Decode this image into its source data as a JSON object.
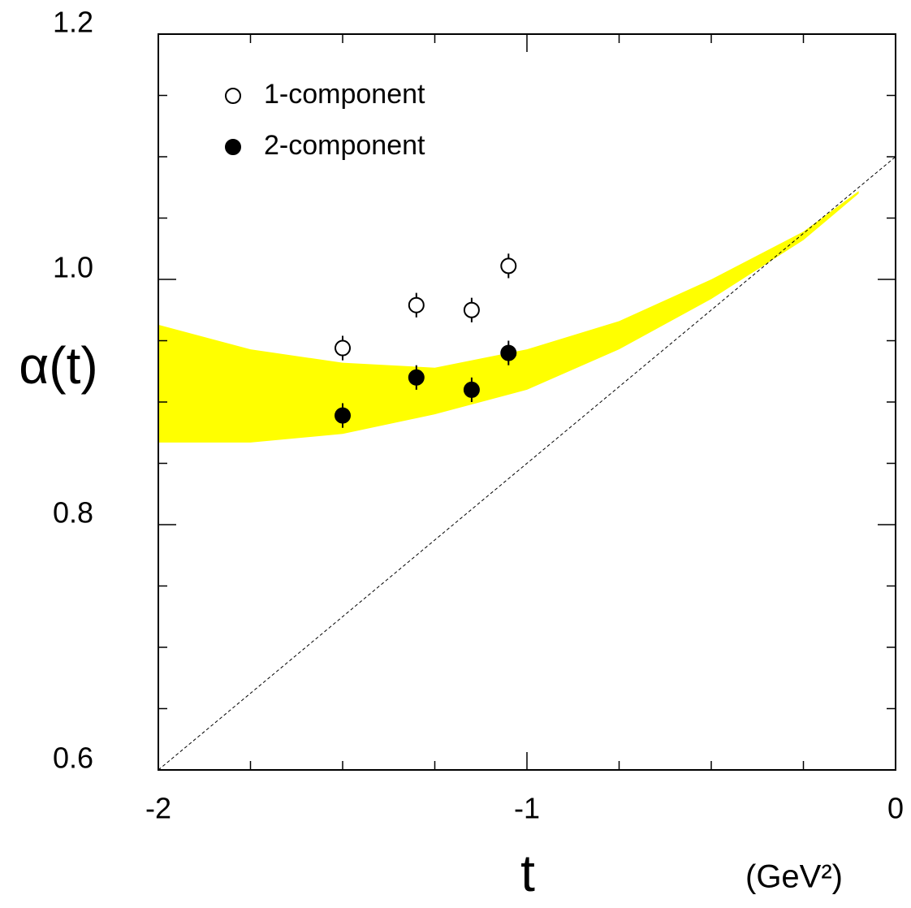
{
  "chart_data": {
    "type": "scatter",
    "y_label": "α(t)",
    "x_label": "t",
    "x_unit": "(GeV²)",
    "xlim": [
      -2,
      0
    ],
    "ylim": [
      0.6,
      1.2
    ],
    "xticks": [
      -2,
      -1,
      0
    ],
    "yticks": [
      0.6,
      0.8,
      {
        "value": 1,
        "label": "1.0"
      },
      1.2
    ],
    "xminorticks": [
      -1.75,
      -1.5,
      -1.25,
      -0.75,
      -0.5,
      -0.25
    ],
    "yminorticks": [
      0.65,
      0.7,
      0.75,
      0.85,
      0.9,
      0.95,
      1.05,
      1.1,
      1.15
    ],
    "legend": "top-left",
    "band": {
      "color": "#ffff00",
      "x": [
        -2,
        -1.75,
        -1.5,
        -1.25,
        -1,
        -0.75,
        -0.5,
        -0.25,
        -0.1
      ],
      "upper": [
        0.963,
        0.943,
        0.932,
        0.928,
        0.943,
        0.966,
        1.0,
        1.039,
        1.072
      ],
      "lower": [
        0.867,
        0.867,
        0.874,
        0.89,
        0.91,
        0.943,
        0.984,
        1.032,
        1.07
      ]
    },
    "reference_line": {
      "x": [
        -2,
        0
      ],
      "values": [
        0.6,
        1.1
      ],
      "color": "#000000"
    },
    "series": [
      {
        "name": "1-component",
        "marker": "open",
        "color": "#000000",
        "x": [
          -1.5,
          -1.3,
          -1.15,
          -1.05
        ],
        "values": [
          0.944,
          0.979,
          0.975,
          1.011
        ],
        "errors": [
          0.01,
          0.01,
          0.01,
          0.01
        ]
      },
      {
        "name": "2-component",
        "marker": "filled",
        "color": "#000000",
        "x": [
          -1.5,
          -1.3,
          -1.15,
          -1.05
        ],
        "values": [
          0.889,
          0.92,
          0.91,
          0.94
        ],
        "errors": [
          0.01,
          0.01,
          0.01,
          0.01
        ]
      }
    ]
  }
}
